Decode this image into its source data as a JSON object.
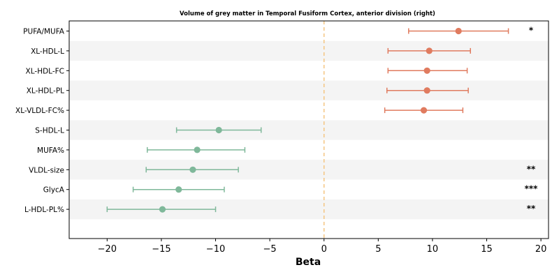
{
  "chart_data": {
    "type": "scatter",
    "subtype": "forest-plot",
    "title": "Volume of grey matter in Temporal Fusiform Cortex, anterior division (right)",
    "xlabel": "Beta",
    "ylabel": "",
    "xlim": [
      -23.5,
      20.7
    ],
    "xticks": [
      -20,
      -15,
      -10,
      -5,
      0,
      5,
      10,
      15,
      20
    ],
    "xtick_labels": [
      "−20",
      "−15",
      "−10",
      "−5",
      "0",
      "5",
      "10",
      "15",
      "20"
    ],
    "reference_line": 0,
    "grid": false,
    "row_striping": true,
    "colors": {
      "positive": "#e07b5f",
      "negative": "#7fb89a",
      "reference": "#f5c27a",
      "stripe": "#f4f4f4"
    },
    "categories": [
      "PUFA/MUFA",
      "XL-HDL-L",
      "XL-HDL-FC",
      "XL-HDL-PL",
      "XL-VLDL-FC%",
      "S-HDL-L",
      "MUFA%",
      "VLDL-size",
      "GlycA",
      "L-HDL-PL%"
    ],
    "beta": [
      12.4,
      9.7,
      9.5,
      9.5,
      9.2,
      -9.7,
      -11.7,
      -12.1,
      -13.4,
      -14.9
    ],
    "ci_low": [
      7.8,
      5.9,
      5.9,
      5.8,
      5.6,
      -13.6,
      -16.3,
      -16.4,
      -17.6,
      -20.0
    ],
    "ci_high": [
      17.0,
      13.5,
      13.2,
      13.3,
      12.8,
      -5.8,
      -7.3,
      -7.9,
      -9.2,
      -10.0
    ],
    "significance": [
      "*",
      "",
      "",
      "",
      "",
      "",
      "",
      "**",
      "***",
      "**"
    ]
  }
}
